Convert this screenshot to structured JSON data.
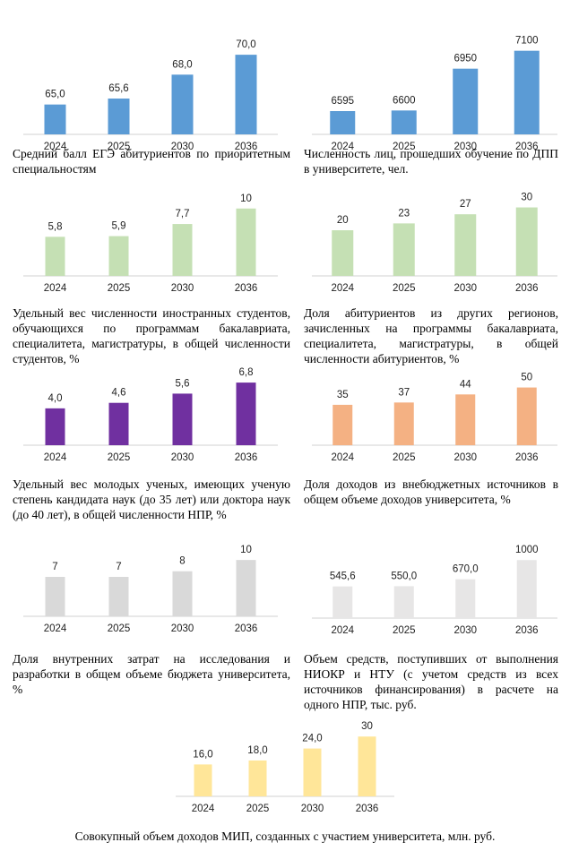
{
  "chart_data": [
    {
      "type": "bar",
      "title": "Средний балл ЕГЭ абитуриентов по приоритетным специальностям",
      "categories": [
        "2024",
        "2025",
        "2030",
        "2036"
      ],
      "values": [
        65.0,
        65.6,
        68.0,
        70.0
      ],
      "value_labels": [
        "65,0",
        "65,6",
        "68,0",
        "70,0"
      ],
      "ylim": [
        62,
        71
      ],
      "color": "#5b9bd5"
    },
    {
      "type": "bar",
      "title": "Численность лиц, прошедших обучение по ДПП в университете, чел.",
      "categories": [
        "2024",
        "2025",
        "2030",
        "2036"
      ],
      "values": [
        6595,
        6600,
        6950,
        7100
      ],
      "value_labels": [
        "6595",
        "6600",
        "6950",
        "7100"
      ],
      "ylim": [
        6400,
        7150
      ],
      "color": "#5b9bd5"
    },
    {
      "type": "bar",
      "title": "Удельный вес численности иностранных студентов, обучающихся по программам бакалавриата, специалитета, магистратуры, в общей численности студентов, %",
      "categories": [
        "2024",
        "2025",
        "2030",
        "2036"
      ],
      "values": [
        5.8,
        5.9,
        7.7,
        10
      ],
      "value_labels": [
        "5,8",
        "5,9",
        "7,7",
        "10"
      ],
      "ylim": [
        0,
        10.5
      ],
      "color": "#c5e0b4"
    },
    {
      "type": "bar",
      "title": "Доля абитуриентов из других регионов, зачисленных на программы бакалавриата, специалитета, магистратуры, в общей численности абитуриентов, %",
      "categories": [
        "2024",
        "2025",
        "2030",
        "2036"
      ],
      "values": [
        20,
        23,
        27,
        30
      ],
      "value_labels": [
        "20",
        "23",
        "27",
        "30"
      ],
      "ylim": [
        0,
        31
      ],
      "color": "#c5e0b4"
    },
    {
      "type": "bar",
      "title": "Удельный вес молодых ученых, имеющих ученую степень кандидата наук (до 35 лет) или доктора наук (до 40 лет), в общей численности НПР, %",
      "categories": [
        "2024",
        "2025",
        "2030",
        "2036"
      ],
      "values": [
        4.0,
        4.6,
        5.6,
        6.8
      ],
      "value_labels": [
        "4,0",
        "4,6",
        "5,6",
        "6,8"
      ],
      "ylim": [
        0,
        7.1
      ],
      "color": "#7030a0"
    },
    {
      "type": "bar",
      "title": "Доля доходов из внебюджетных источников в общем объеме доходов университета, %",
      "categories": [
        "2024",
        "2025",
        "2030",
        "2036"
      ],
      "values": [
        35,
        37,
        44,
        50
      ],
      "value_labels": [
        "35",
        "37",
        "44",
        "50"
      ],
      "ylim": [
        0,
        52
      ],
      "color": "#f4b183"
    },
    {
      "type": "bar",
      "title": "Доля внутренних затрат на исследования и разработки в общем объеме бюджета университета, %",
      "categories": [
        "2024",
        "2025",
        "2030",
        "2036"
      ],
      "values": [
        7,
        7,
        8,
        10
      ],
      "value_labels": [
        "7",
        "7",
        "8",
        "10"
      ],
      "ylim": [
        0,
        10.5
      ],
      "color": "#d9d9d9"
    },
    {
      "type": "bar",
      "title": "Объем средств, поступивших от выполнения НИОКР и НТУ (с учетом средств из всех источников финансирования) в расчете на одного НПР, тыс. руб.",
      "categories": [
        "2024",
        "2025",
        "2030",
        "2036"
      ],
      "values": [
        545.6,
        550.0,
        670.0,
        1000
      ],
      "value_labels": [
        "545,6",
        "550,0",
        "670,0",
        "1000"
      ],
      "ylim": [
        0,
        1050
      ],
      "color": "#e7e6e6"
    },
    {
      "type": "bar",
      "title": "Совокупный объем доходов МИП, созданных с участием университета, млн. руб.",
      "categories": [
        "2024",
        "2025",
        "2030",
        "2036"
      ],
      "values": [
        16.0,
        18.0,
        24.0,
        30
      ],
      "value_labels": [
        "16,0",
        "18,0",
        "24,0",
        "30"
      ],
      "ylim": [
        0,
        31
      ],
      "color": "#ffe699"
    }
  ]
}
